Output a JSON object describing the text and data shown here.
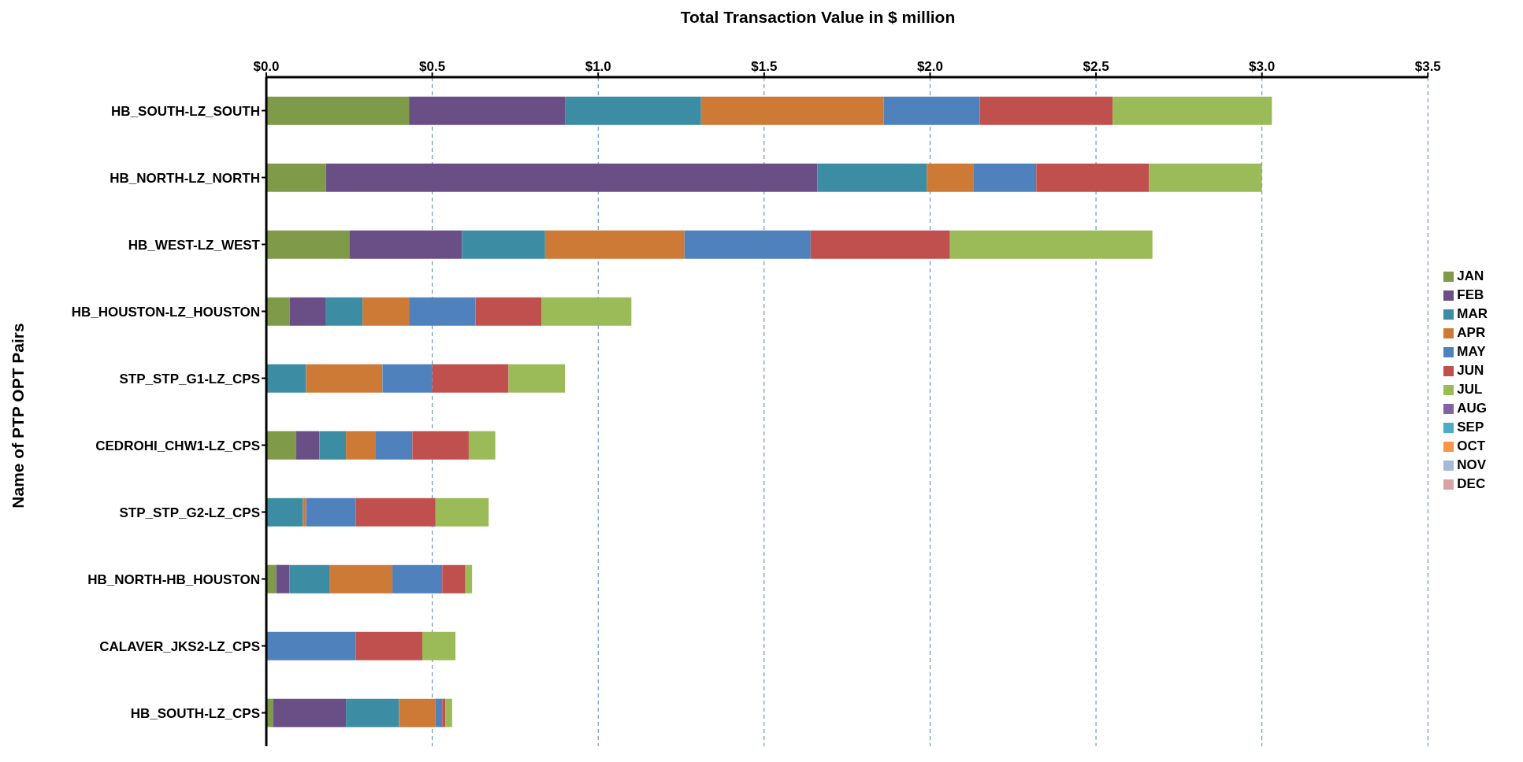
{
  "chart_data": {
    "type": "bar",
    "orientation": "horizontal",
    "stacked": true,
    "xlabel": "Total Transaction Value in $ million",
    "ylabel": "Name of PTP OPT Pairs",
    "categories": [
      "HB_SOUTH-LZ_SOUTH",
      "HB_NORTH-LZ_NORTH",
      "HB_WEST-LZ_WEST",
      "HB_HOUSTON-LZ_HOUSTON",
      "STP_STP_G1-LZ_CPS",
      "CEDROHI_CHW1-LZ_CPS",
      "STP_STP_G2-LZ_CPS",
      "HB_NORTH-HB_HOUSTON",
      "CALAVER_JKS2-LZ_CPS",
      "HB_SOUTH-LZ_CPS"
    ],
    "series": [
      {
        "name": "JAN",
        "color": "#7f9a48",
        "values": [
          0.43,
          0.18,
          0.25,
          0.07,
          0,
          0.09,
          0,
          0.03,
          0,
          0.02
        ]
      },
      {
        "name": "FEB",
        "color": "#6a4f86",
        "values": [
          0.47,
          1.48,
          0.34,
          0.11,
          null,
          0.07,
          null,
          0.04,
          0,
          0.22
        ]
      },
      {
        "name": "MAR",
        "color": "#3c8da3",
        "values": [
          0.41,
          0.33,
          0.25,
          0.11,
          0.12,
          0.08,
          0.11,
          0.12,
          0,
          0.16
        ]
      },
      {
        "name": "APR",
        "color": "#cd7a37",
        "values": [
          0.55,
          0.14,
          0.42,
          0.14,
          0.23,
          0.09,
          0.01,
          0.19,
          0,
          0.11
        ]
      },
      {
        "name": "MAY",
        "color": "#4f81bd",
        "values": [
          0.29,
          0.19,
          0.38,
          0.2,
          0.15,
          0.11,
          0.15,
          0.15,
          0.27,
          0.02
        ]
      },
      {
        "name": "JUN",
        "color": "#c0504d",
        "values": [
          0.4,
          0.34,
          0.42,
          0.2,
          0.23,
          0.17,
          0.24,
          0.07,
          0.2,
          0.01
        ]
      },
      {
        "name": "JUL",
        "color": "#9bbb59",
        "values": [
          0.48,
          0.34,
          0.61,
          0.27,
          0.17,
          0.08,
          0.16,
          0.02,
          0.1,
          0.02
        ]
      },
      {
        "name": "AUG",
        "color": "#8064a2",
        "values": [
          null,
          null,
          null,
          null,
          null,
          null,
          null,
          null,
          null,
          null
        ]
      },
      {
        "name": "SEP",
        "color": "#4bacc6",
        "values": [
          null,
          null,
          null,
          null,
          null,
          null,
          null,
          null,
          null,
          null
        ]
      },
      {
        "name": "OCT",
        "color": "#f79646",
        "values": [
          null,
          null,
          null,
          null,
          null,
          null,
          null,
          null,
          null,
          null
        ]
      },
      {
        "name": "NOV",
        "color": "#a7b9d8",
        "values": [
          null,
          null,
          null,
          null,
          null,
          null,
          null,
          null,
          null,
          null
        ]
      },
      {
        "name": "DEC",
        "color": "#d8a3a2",
        "values": [
          null,
          null,
          null,
          null,
          null,
          null,
          null,
          null,
          null,
          null
        ]
      }
    ],
    "xlim": [
      0,
      3.5
    ],
    "xticks": [
      {
        "value": 0,
        "label": "$0.0"
      },
      {
        "value": 0.5,
        "label": "$0.5"
      },
      {
        "value": 1,
        "label": "$1.0"
      },
      {
        "value": 1.5,
        "label": "$1.5"
      },
      {
        "value": 2,
        "label": "$2.0"
      },
      {
        "value": 2.5,
        "label": "$2.5"
      },
      {
        "value": 3,
        "label": "$3.0"
      },
      {
        "value": 3.5,
        "label": "$3.5"
      }
    ],
    "grid": "x",
    "legend": "right"
  }
}
